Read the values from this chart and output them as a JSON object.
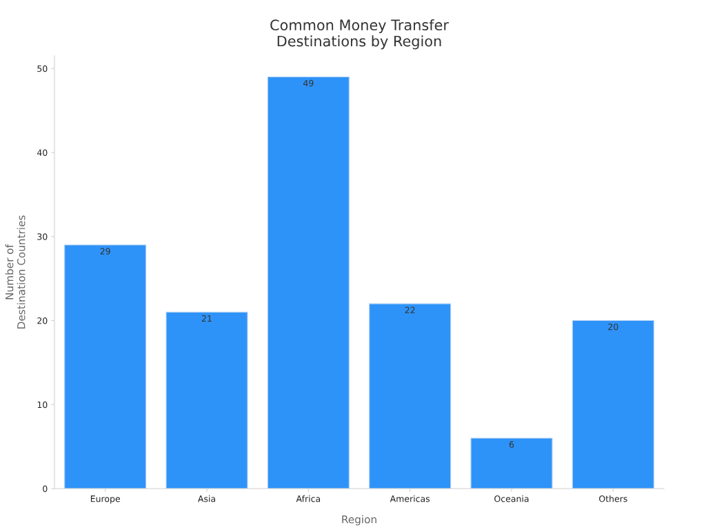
{
  "chart_data": {
    "type": "bar",
    "title": "Common Money Transfer\nDestinations by Region",
    "xlabel": "Region",
    "ylabel": "Number of\nDestination Countries",
    "categories": [
      "Europe",
      "Asia",
      "Africa",
      "Americas",
      "Oceania",
      "Others"
    ],
    "values": [
      29,
      21,
      49,
      22,
      6,
      20
    ],
    "color": "#2e93f8",
    "ylim": [
      0,
      51.5
    ],
    "yticks": [
      0,
      10,
      20,
      30,
      40,
      50
    ],
    "grid": false,
    "data_labels": true
  }
}
